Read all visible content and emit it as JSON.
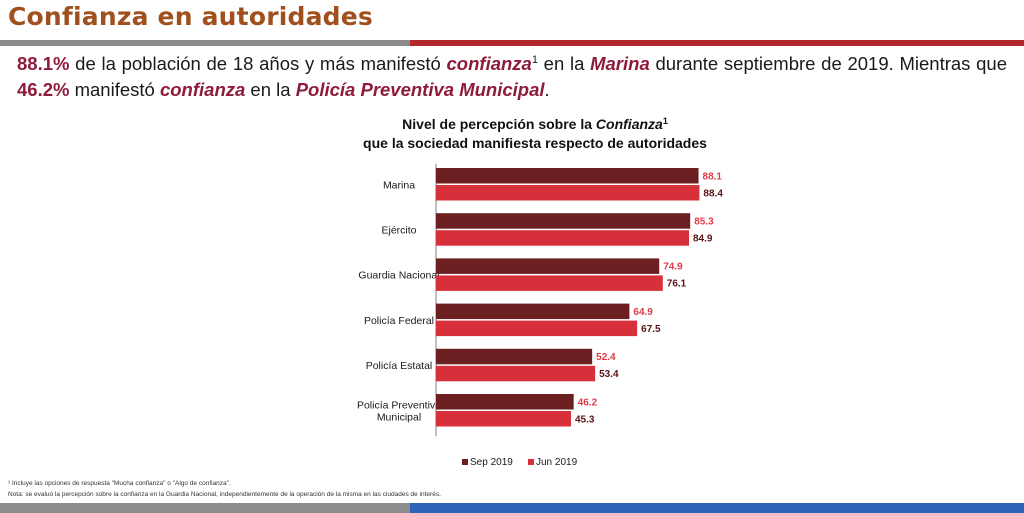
{
  "header": {
    "title": "Confianza en autoridades"
  },
  "lead": {
    "value1": "88.1%",
    "text1": " de la población de 18 años y más manifestó ",
    "term1": "confianza",
    "sup": "1",
    "text2": " en la ",
    "term2": "Marina",
    "text3": " durante septiembre de 2019. Mientras que ",
    "value2": "46.2%",
    "text4": " manifestó ",
    "term3": "confianza",
    "text5": " en la ",
    "term4": "Policía Preventiva Municipal",
    "text6": "."
  },
  "chart_title": {
    "line1_prefix": "Nivel de percepción sobre la ",
    "line1_em": "Confianza",
    "line1_sup": "1",
    "line2": "que la sociedad manifiesta respecto de autoridades"
  },
  "chart_data": {
    "type": "bar",
    "orientation": "horizontal",
    "title": "Nivel de percepción sobre la Confianza¹ que la sociedad manifiesta respecto de autoridades",
    "categories": [
      "Marina",
      "Ejército",
      "Guardia Nacional",
      "Policía Federal",
      "Policía Estatal",
      "Policía Preventiva Municipal"
    ],
    "category_lines": [
      [
        "Marina"
      ],
      [
        "Ejército"
      ],
      [
        "Guardia Nacional"
      ],
      [
        "Policía Federal"
      ],
      [
        "Policía Estatal"
      ],
      [
        "Policía Preventiva",
        "Municipal"
      ]
    ],
    "series": [
      {
        "name": "Sep 2019",
        "color": "#6b1f21",
        "label_color": "#e03a45",
        "values": [
          88.1,
          85.3,
          74.9,
          64.9,
          52.4,
          46.2
        ]
      },
      {
        "name": "Jun 2019",
        "color": "#d8303a",
        "label_color": "#5a1416",
        "values": [
          88.4,
          84.9,
          76.1,
          67.5,
          53.4,
          45.3
        ]
      }
    ],
    "xlim": [
      0,
      100
    ],
    "legend_position": "bottom-center",
    "grid": false
  },
  "footnotes": {
    "note1": "¹ Incluye las opciones de respuesta \"Mucha confianza\" o \"Algo de confianza\".",
    "note2": "Nota: se evaluó la percepción sobre la confianza en la Guardia Nacional, independientemente de la operación de la misma en las ciudades de interés."
  }
}
